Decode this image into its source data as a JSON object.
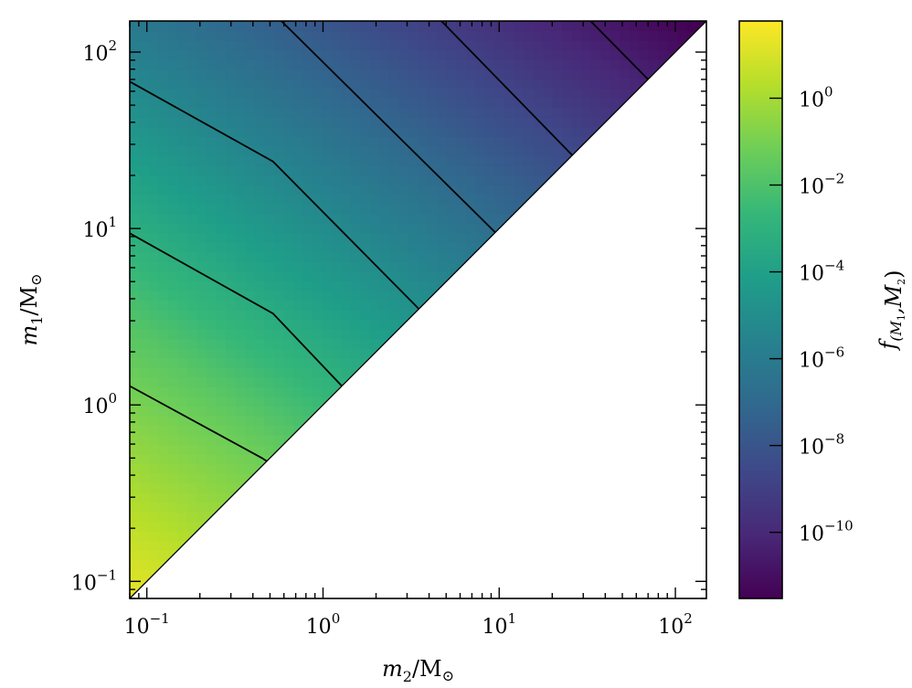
{
  "chart_data": {
    "type": "heatmap",
    "x": {
      "label_var": "m",
      "label_sub": "2",
      "label_unit": "/M",
      "label_unit_sub": "⊙",
      "scale": "log",
      "range": [
        0.08,
        150
      ],
      "major_ticks": [
        0.1,
        1,
        10,
        100
      ],
      "tick_labels": [
        {
          "base": "10",
          "exp": "−1"
        },
        {
          "base": "10",
          "exp": "0"
        },
        {
          "base": "10",
          "exp": "1"
        },
        {
          "base": "10",
          "exp": "2"
        }
      ]
    },
    "y": {
      "label_var": "m",
      "label_sub": "1",
      "label_unit": "/M",
      "label_unit_sub": "⊙",
      "scale": "log",
      "range": [
        0.08,
        150
      ],
      "major_ticks": [
        0.1,
        1,
        10,
        100
      ],
      "tick_labels": [
        {
          "base": "10",
          "exp": "−1"
        },
        {
          "base": "10",
          "exp": "0"
        },
        {
          "base": "10",
          "exp": "1"
        },
        {
          "base": "10",
          "exp": "2"
        }
      ]
    },
    "colorbar": {
      "label_var": "f",
      "label_sub": "(M",
      "label_sub2": "1",
      "label_mid": ",M",
      "label_sub3": "2",
      "label_end": ")",
      "scale": "log",
      "range": [
        3e-12,
        60
      ],
      "colormap": "viridis",
      "ticks": [
        1,
        0.01,
        0.0001,
        1e-06,
        1e-08,
        1e-10
      ],
      "tick_labels": [
        {
          "base": "10",
          "exp": "0"
        },
        {
          "base": "10",
          "exp": "−2"
        },
        {
          "base": "10",
          "exp": "−4"
        },
        {
          "base": "10",
          "exp": "−6"
        },
        {
          "base": "10",
          "exp": "−8"
        },
        {
          "base": "10",
          "exp": "−10"
        }
      ]
    },
    "domain": "m1 >= m2",
    "contours": [
      {
        "points": [
          [
            0.08,
            1.28
          ],
          [
            0.45,
            0.5
          ],
          [
            0.48,
            0.48
          ]
        ]
      },
      {
        "points": [
          [
            0.08,
            9.4
          ],
          [
            0.52,
            3.3
          ],
          [
            1.28,
            1.28
          ]
        ]
      },
      {
        "points": [
          [
            0.08,
            68
          ],
          [
            0.52,
            24
          ],
          [
            3.5,
            3.5
          ]
        ]
      },
      {
        "points": [
          [
            0.58,
            150
          ],
          [
            9.5,
            9.5
          ]
        ]
      },
      {
        "points": [
          [
            4.7,
            150
          ],
          [
            26,
            26
          ]
        ]
      },
      {
        "points": [
          [
            33,
            150
          ],
          [
            70,
            70
          ]
        ]
      }
    ],
    "grid": false
  },
  "colors": {
    "viridis": [
      "#440154",
      "#482878",
      "#3e4989",
      "#31688e",
      "#26828e",
      "#1f9e89",
      "#35b779",
      "#6ece58",
      "#b5de2b",
      "#fde725"
    ],
    "contour_line": "#000000",
    "axis": "#000000"
  }
}
